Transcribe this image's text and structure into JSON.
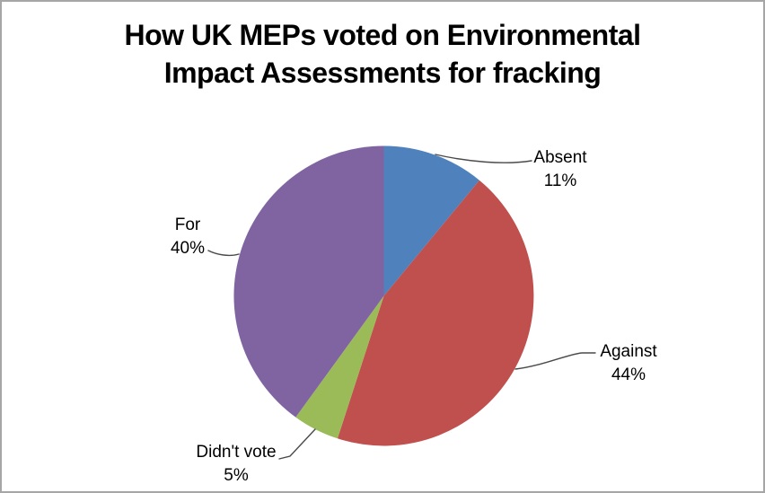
{
  "chart_data": {
    "type": "pie",
    "title": "How UK MEPs voted on Environmental Impact Assessments for fracking",
    "start_angle_deg": 0,
    "direction": "clockwise",
    "legend": "none",
    "label_style": "outside callouts with leader lines",
    "background_color": "#ffffff",
    "border_color": "#a6a6a6",
    "leader_line_color": "#4a4a4a",
    "slices": [
      {
        "label": "Absent",
        "value": 11,
        "pct_label": "11%",
        "color": "#4f81bd"
      },
      {
        "label": "Against",
        "value": 44,
        "pct_label": "44%",
        "color": "#c0504d"
      },
      {
        "label": "Didn't vote",
        "value": 5,
        "pct_label": "5%",
        "color": "#9bbb59"
      },
      {
        "label": "For",
        "value": 40,
        "pct_label": "40%",
        "color": "#8064a2"
      }
    ]
  }
}
